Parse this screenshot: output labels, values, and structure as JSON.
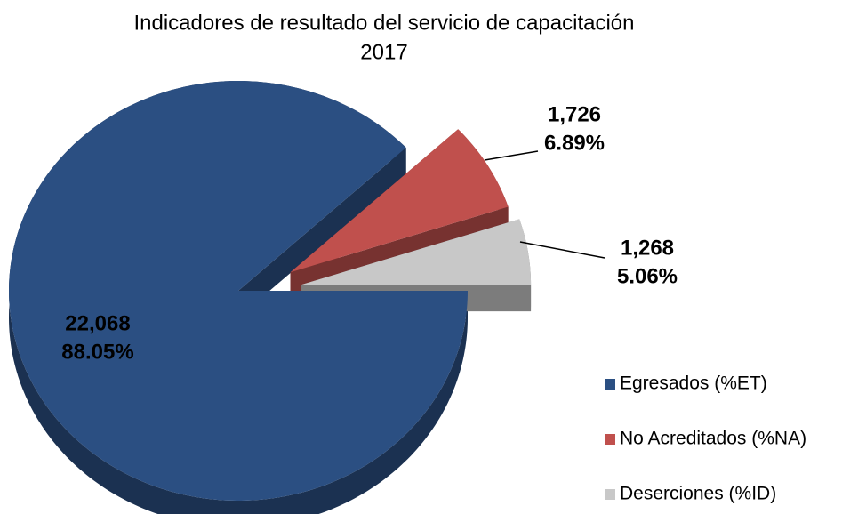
{
  "chart_data": {
    "type": "pie",
    "title": "Indicadores de resultado del servicio de capacitación",
    "subtitle": "2017",
    "categories": [
      "Egresados (%ET)",
      "No Acreditados (%NA)",
      "Deserciones (%ID)"
    ],
    "values": [
      22068,
      1726,
      1268
    ],
    "value_labels": [
      "22,068",
      "1,726",
      "1,268"
    ],
    "percentages": [
      88.05,
      6.89,
      5.06
    ],
    "percentage_labels": [
      "88.05%",
      "6.89%",
      "5.06%"
    ],
    "colors": [
      "#2b4f82",
      "#c0504d",
      "#c8c8c8"
    ],
    "legend": "right"
  }
}
